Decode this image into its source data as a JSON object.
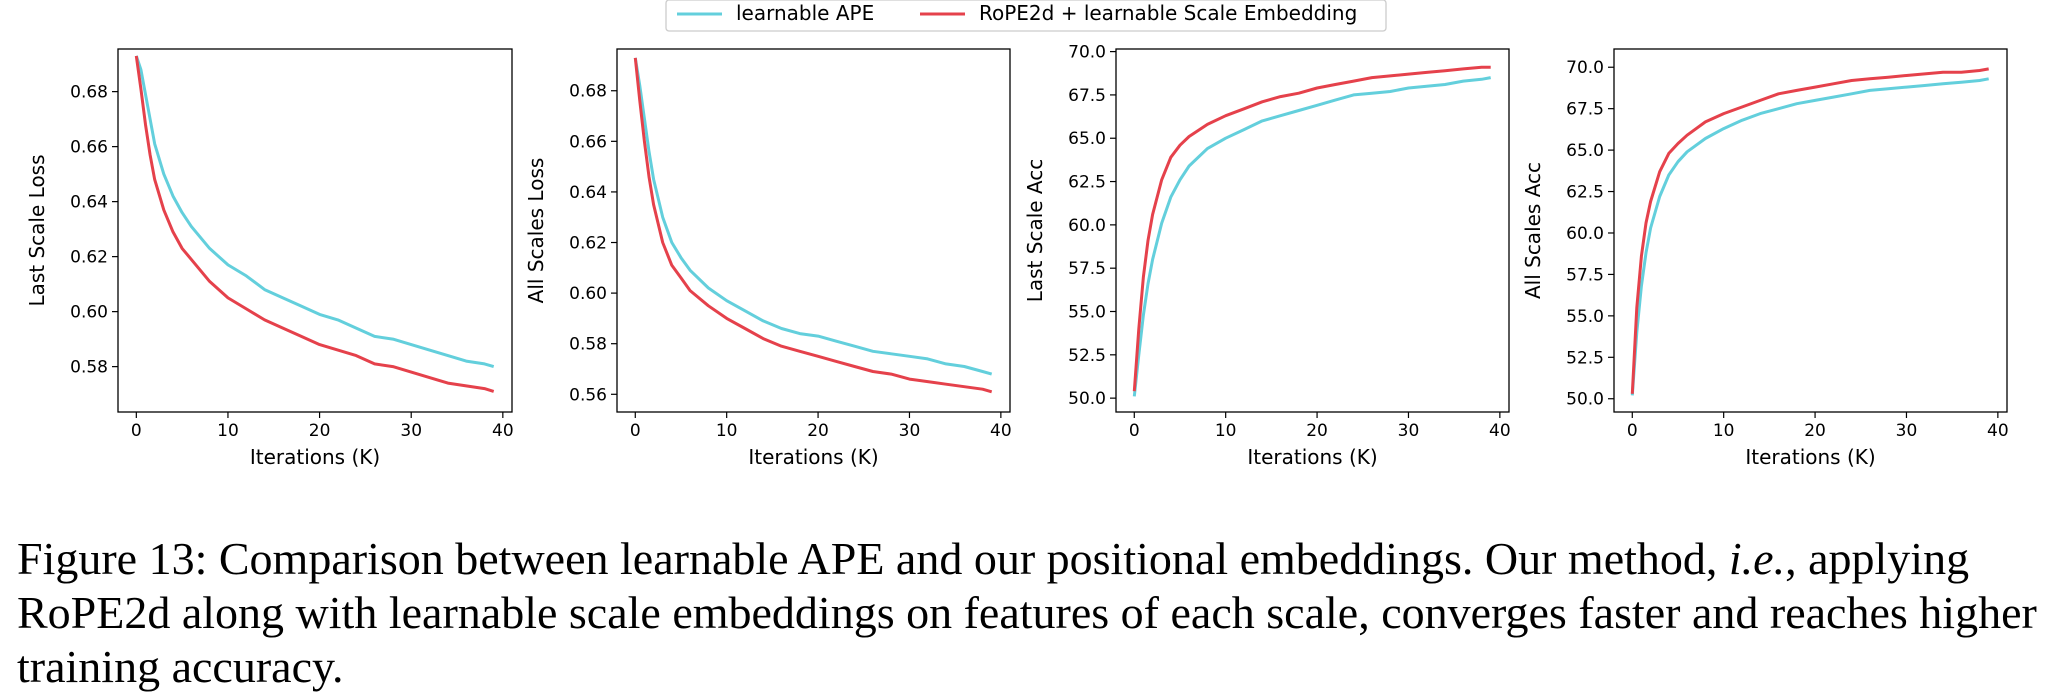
{
  "legend": {
    "items": [
      {
        "label": "learnable APE",
        "color": "#63cfdc"
      },
      {
        "label": "RoPE2d + learnable Scale Embedding",
        "color": "#e5414b"
      }
    ]
  },
  "chart_data": [
    {
      "type": "line",
      "xlabel": "Iterations (K)",
      "ylabel": "Last Scale Loss",
      "xlim": [
        -2,
        41
      ],
      "ylim": [
        0.5635,
        0.6955
      ],
      "xticks": [
        0,
        10,
        20,
        30,
        40
      ],
      "yticks": [
        0.58,
        0.6,
        0.62,
        0.64,
        0.66,
        0.68
      ],
      "tick_decimals": 2,
      "grid": false,
      "series": [
        {
          "name": "learnable APE",
          "color": "#63cfdc",
          "x": [
            0,
            0.5,
            1,
            1.5,
            2,
            3,
            4,
            5,
            6,
            8,
            10,
            12,
            14,
            16,
            18,
            20,
            22,
            24,
            26,
            28,
            30,
            32,
            34,
            36,
            38,
            39
          ],
          "y": [
            0.693,
            0.688,
            0.679,
            0.67,
            0.661,
            0.65,
            0.642,
            0.636,
            0.631,
            0.623,
            0.617,
            0.613,
            0.608,
            0.605,
            0.602,
            0.599,
            0.597,
            0.594,
            0.591,
            0.59,
            0.588,
            0.586,
            0.584,
            0.582,
            0.581,
            0.58
          ]
        },
        {
          "name": "RoPE2d + learnable Scale Embedding",
          "color": "#e5414b",
          "x": [
            0,
            0.5,
            1,
            1.5,
            2,
            3,
            4,
            5,
            6,
            8,
            10,
            12,
            14,
            16,
            18,
            20,
            22,
            24,
            26,
            28,
            30,
            32,
            34,
            36,
            38,
            39
          ],
          "y": [
            0.693,
            0.681,
            0.668,
            0.657,
            0.648,
            0.637,
            0.629,
            0.623,
            0.619,
            0.611,
            0.605,
            0.601,
            0.597,
            0.594,
            0.591,
            0.588,
            0.586,
            0.584,
            0.581,
            0.58,
            0.578,
            0.576,
            0.574,
            0.573,
            0.572,
            0.571
          ]
        }
      ]
    },
    {
      "type": "line",
      "xlabel": "Iterations (K)",
      "ylabel": "All Scales Loss",
      "xlim": [
        -2,
        41
      ],
      "ylim": [
        0.553,
        0.6965
      ],
      "xticks": [
        0,
        10,
        20,
        30,
        40
      ],
      "yticks": [
        0.56,
        0.58,
        0.6,
        0.62,
        0.64,
        0.66,
        0.68
      ],
      "tick_decimals": 2,
      "grid": false,
      "series": [
        {
          "name": "learnable APE",
          "color": "#63cfdc",
          "x": [
            0,
            0.5,
            1,
            1.5,
            2,
            3,
            4,
            5,
            6,
            8,
            10,
            12,
            14,
            16,
            18,
            20,
            22,
            24,
            26,
            28,
            30,
            32,
            34,
            36,
            38,
            39
          ],
          "y": [
            0.693,
            0.682,
            0.669,
            0.656,
            0.645,
            0.63,
            0.62,
            0.614,
            0.609,
            0.602,
            0.597,
            0.593,
            0.589,
            0.586,
            0.584,
            0.583,
            0.581,
            0.579,
            0.577,
            0.576,
            0.575,
            0.574,
            0.572,
            0.571,
            0.569,
            0.568
          ]
        },
        {
          "name": "RoPE2d + learnable Scale Embedding",
          "color": "#e5414b",
          "x": [
            0,
            0.5,
            1,
            1.5,
            2,
            3,
            4,
            5,
            6,
            8,
            10,
            12,
            14,
            16,
            18,
            20,
            22,
            24,
            26,
            28,
            30,
            32,
            34,
            36,
            38,
            39
          ],
          "y": [
            0.693,
            0.676,
            0.66,
            0.646,
            0.635,
            0.62,
            0.611,
            0.606,
            0.601,
            0.595,
            0.59,
            0.586,
            0.582,
            0.579,
            0.577,
            0.575,
            0.573,
            0.571,
            0.569,
            0.568,
            0.566,
            0.565,
            0.564,
            0.563,
            0.562,
            0.561
          ]
        }
      ]
    },
    {
      "type": "line",
      "xlabel": "Iterations (K)",
      "ylabel": "Last Scale Acc",
      "xlim": [
        -2,
        41
      ],
      "ylim": [
        49.2,
        70.15
      ],
      "xticks": [
        0,
        10,
        20,
        30,
        40
      ],
      "yticks": [
        50.0,
        52.5,
        55.0,
        57.5,
        60.0,
        62.5,
        65.0,
        67.5,
        70.0
      ],
      "tick_decimals": 1,
      "grid": false,
      "series": [
        {
          "name": "learnable APE",
          "color": "#63cfdc",
          "x": [
            0,
            0.5,
            1,
            1.5,
            2,
            3,
            4,
            5,
            6,
            8,
            10,
            12,
            14,
            16,
            18,
            20,
            22,
            24,
            26,
            28,
            30,
            32,
            34,
            36,
            38,
            39
          ],
          "y": [
            50.1,
            52.5,
            54.8,
            56.6,
            58.0,
            60.1,
            61.6,
            62.6,
            63.4,
            64.4,
            65.0,
            65.5,
            66.0,
            66.3,
            66.6,
            66.9,
            67.2,
            67.5,
            67.6,
            67.7,
            67.9,
            68.0,
            68.1,
            68.3,
            68.4,
            68.5
          ]
        },
        {
          "name": "RoPE2d + learnable Scale Embedding",
          "color": "#e5414b",
          "x": [
            0,
            0.5,
            1,
            1.5,
            2,
            3,
            4,
            5,
            6,
            8,
            10,
            12,
            14,
            16,
            18,
            20,
            22,
            24,
            26,
            28,
            30,
            32,
            34,
            36,
            38,
            39
          ],
          "y": [
            50.4,
            54.0,
            57.0,
            59.1,
            60.6,
            62.6,
            63.9,
            64.6,
            65.1,
            65.8,
            66.3,
            66.7,
            67.1,
            67.4,
            67.6,
            67.9,
            68.1,
            68.3,
            68.5,
            68.6,
            68.7,
            68.8,
            68.9,
            69.0,
            69.1,
            69.1
          ]
        }
      ]
    },
    {
      "type": "line",
      "xlabel": "Iterations (K)",
      "ylabel": "All Scales Acc",
      "xlim": [
        -2,
        41
      ],
      "ylim": [
        49.2,
        71.1
      ],
      "xticks": [
        0,
        10,
        20,
        30,
        40
      ],
      "yticks": [
        50.0,
        52.5,
        55.0,
        57.5,
        60.0,
        62.5,
        65.0,
        67.5,
        70.0
      ],
      "tick_decimals": 1,
      "grid": false,
      "series": [
        {
          "name": "learnable APE",
          "color": "#63cfdc",
          "x": [
            0,
            0.5,
            1,
            1.5,
            2,
            3,
            4,
            5,
            6,
            8,
            10,
            12,
            14,
            16,
            18,
            20,
            22,
            24,
            26,
            28,
            30,
            32,
            34,
            36,
            38,
            39
          ],
          "y": [
            50.2,
            54.0,
            56.8,
            58.8,
            60.3,
            62.2,
            63.5,
            64.3,
            64.9,
            65.7,
            66.3,
            66.8,
            67.2,
            67.5,
            67.8,
            68.0,
            68.2,
            68.4,
            68.6,
            68.7,
            68.8,
            68.9,
            69.0,
            69.1,
            69.2,
            69.3
          ]
        },
        {
          "name": "RoPE2d + learnable Scale Embedding",
          "color": "#e5414b",
          "x": [
            0,
            0.5,
            1,
            1.5,
            2,
            3,
            4,
            5,
            6,
            8,
            10,
            12,
            14,
            16,
            18,
            20,
            22,
            24,
            26,
            28,
            30,
            32,
            34,
            36,
            38,
            39
          ],
          "y": [
            50.3,
            55.5,
            58.6,
            60.6,
            61.9,
            63.7,
            64.8,
            65.4,
            65.9,
            66.7,
            67.2,
            67.6,
            68.0,
            68.4,
            68.6,
            68.8,
            69.0,
            69.2,
            69.3,
            69.4,
            69.5,
            69.6,
            69.7,
            69.7,
            69.8,
            69.9
          ]
        }
      ]
    }
  ],
  "caption": {
    "prefix": "Figure 13: Comparison between learnable APE and our positional embeddings. Our method, ",
    "emphasis": "i.e.",
    "suffix": ", applying RoPE2d along with learnable scale embeddings on features of each scale, converges faster and reaches higher training accuracy."
  }
}
